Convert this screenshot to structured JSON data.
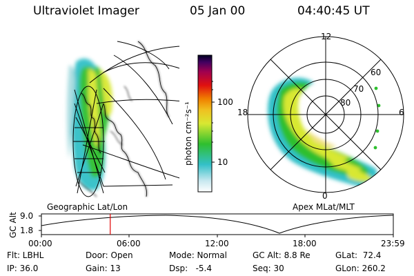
{
  "header": {
    "title": "Ultraviolet Imager",
    "date": "05 Jan 00",
    "time": "04:40:45 UT"
  },
  "colorbar": {
    "unit_label": "photon cm⁻²s⁻¹",
    "ticks": [
      "100",
      "10"
    ]
  },
  "polar_plot": {
    "mlt_labels": [
      "12",
      "18",
      "6",
      "0"
    ],
    "mlat_labels": [
      "60",
      "70",
      "80"
    ],
    "caption": "Apex MLat/MLT"
  },
  "geo_plot": {
    "caption": "Geographic Lat/Lon"
  },
  "timeline": {
    "ylabel": "GC Alt",
    "y_ticks": [
      "9.0",
      "1.8"
    ],
    "x_ticks": [
      "00:00",
      "06:00",
      "12:00",
      "18:00",
      "23:59"
    ],
    "current_time_fraction": 0.1956
  },
  "status": {
    "flt": "Flt: LBHL",
    "ip": "IP: 36.0",
    "door": "Door: Open",
    "gain": "Gain: 13",
    "mode": "Mode: Normal",
    "dsp": "Dsp:   -5.4",
    "gc_alt": "GC Alt: 8.8 Re",
    "seq": "Seq: 30",
    "glat": "GLat:  72.4",
    "glon": "GLon: 260.2"
  },
  "colors": {
    "green": "#2fbf2f",
    "yellow": "#d8e832",
    "cyan": "#33c0c8",
    "marker": "#e00000"
  }
}
